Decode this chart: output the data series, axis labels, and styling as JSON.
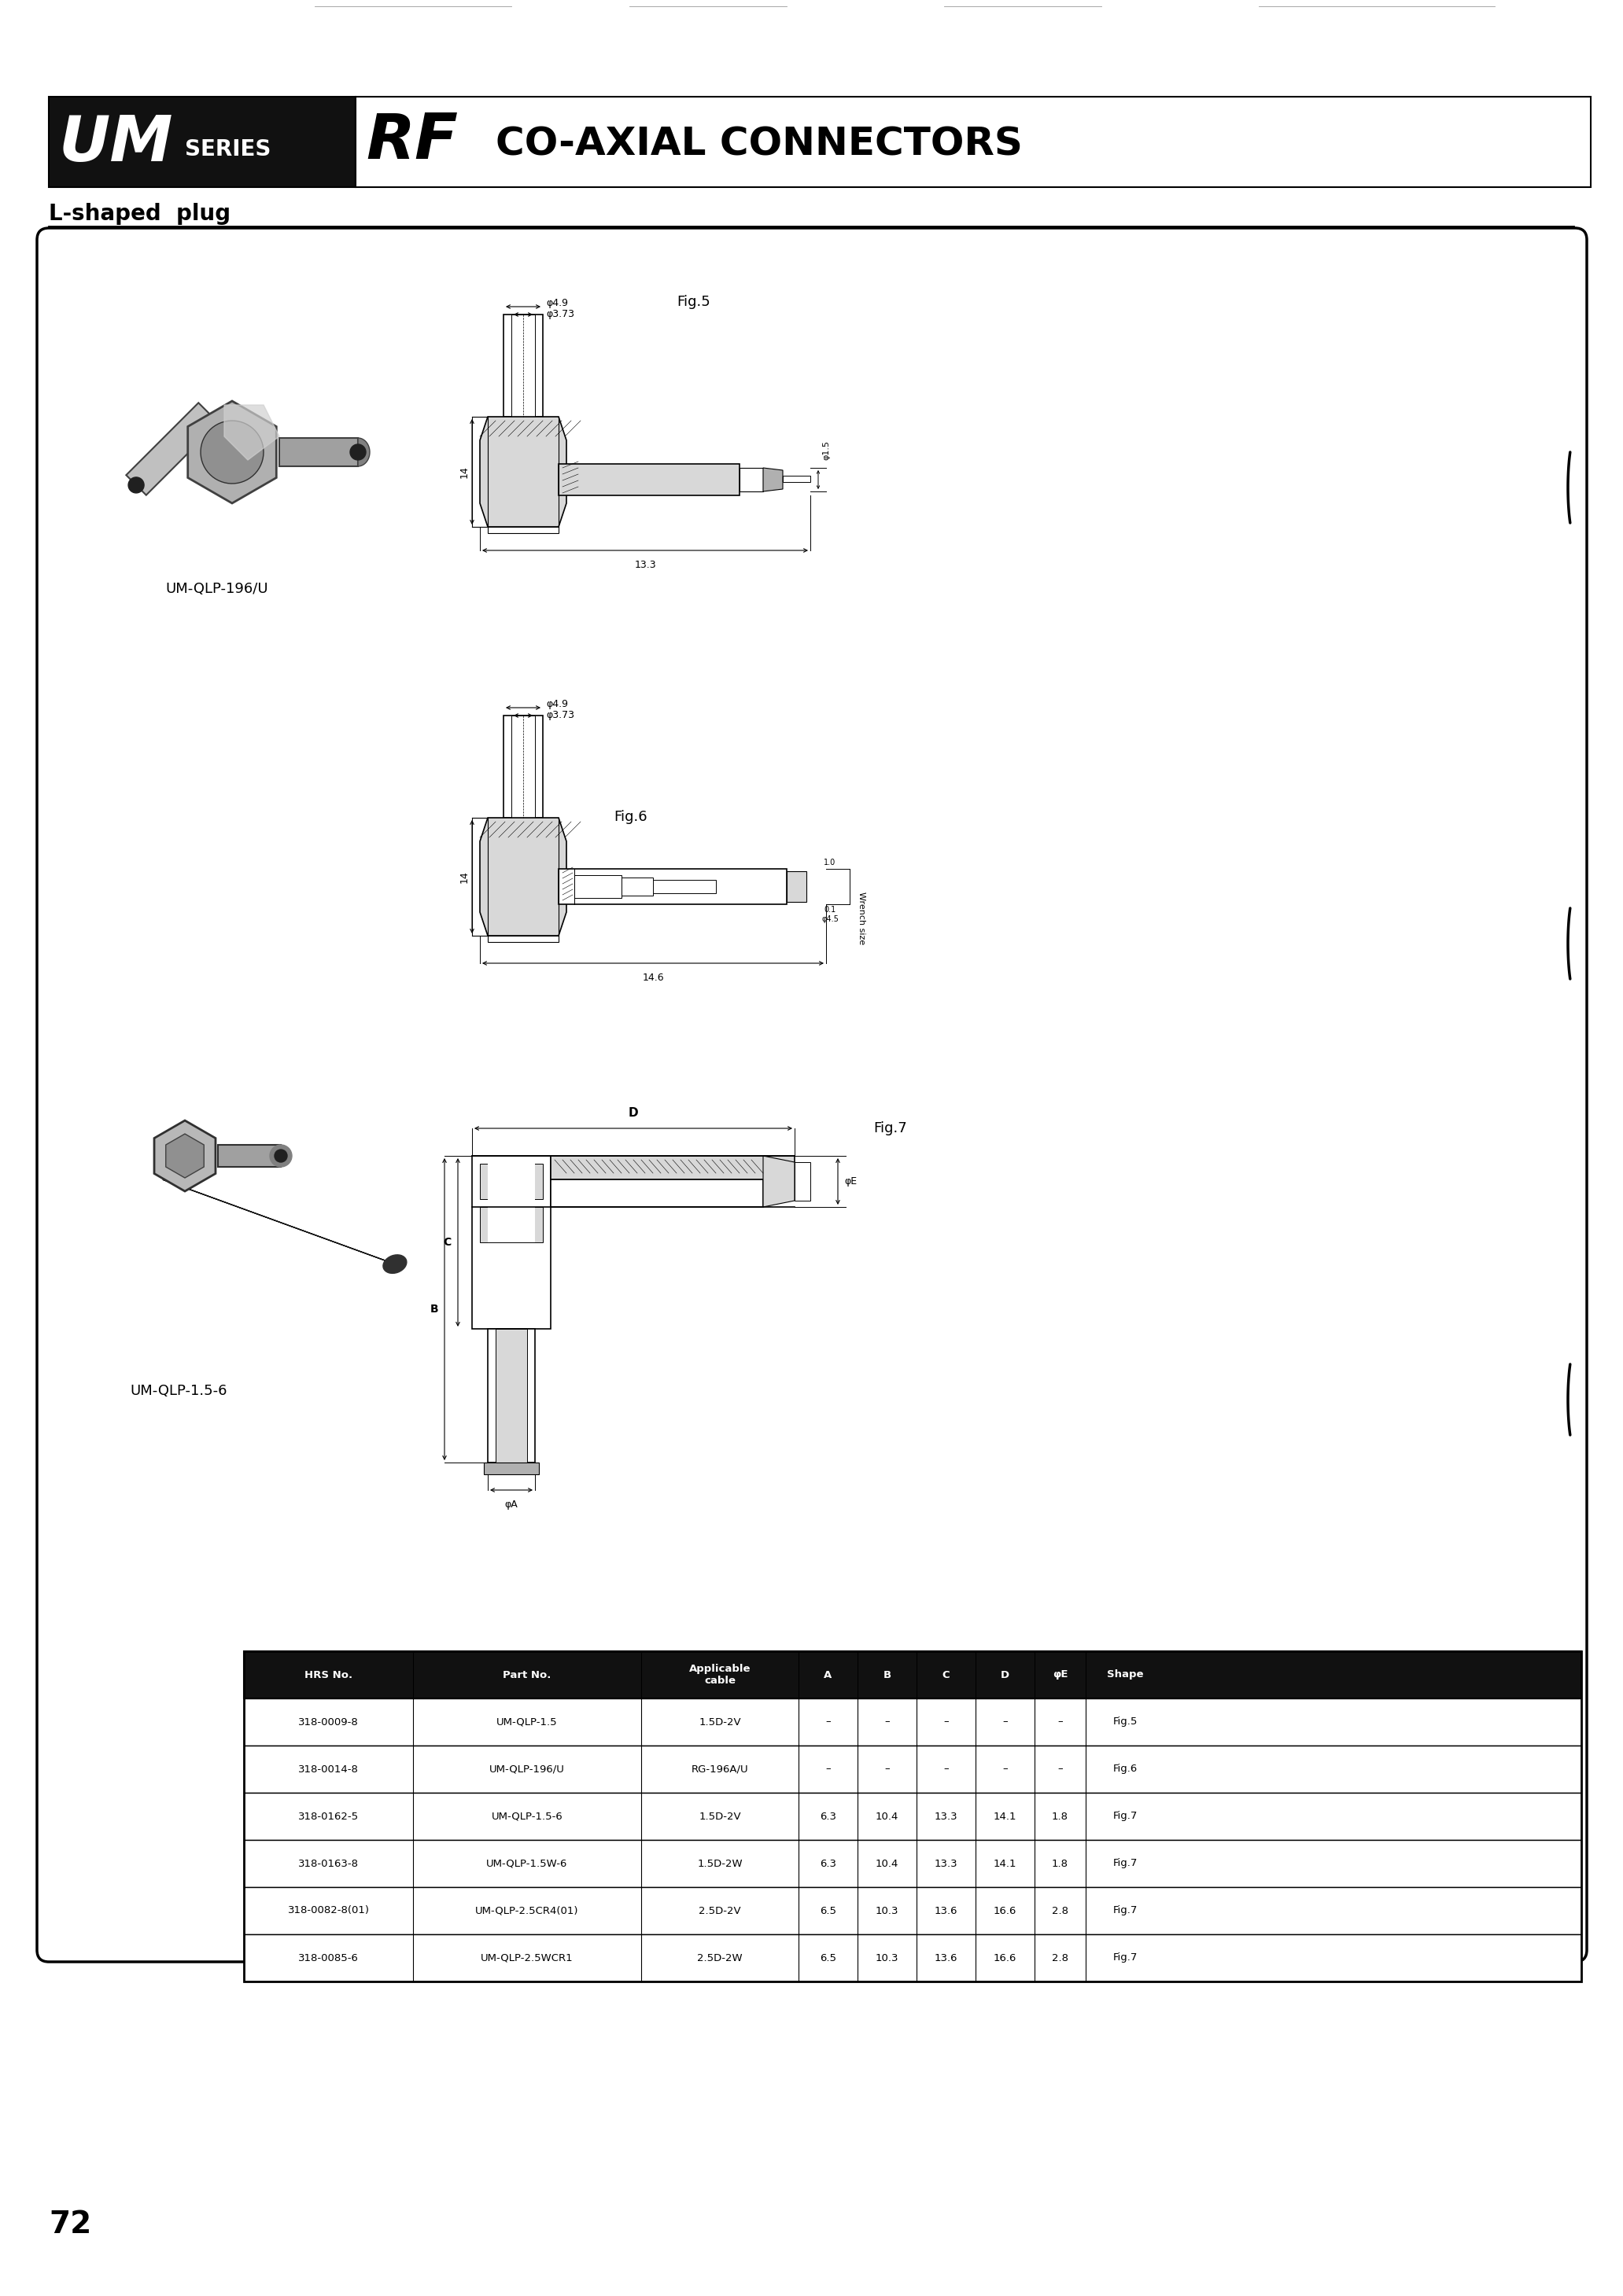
{
  "title_um": "UM",
  "title_series": "SERIES",
  "title_rf": "RF",
  "title_co": "CO-AXIAL CONNECTORS",
  "subtitle": "L-shaped  plug",
  "label1": "UM-QLP-196/U",
  "label2": "UM-QLP-1.5-6",
  "page_number": "72",
  "fig5_label": "Fig.5",
  "fig6_label": "Fig.6",
  "fig7_label": "Fig.7",
  "dim_49": "φ4.9",
  "dim_373": "φ3.73",
  "dim_14": "14",
  "dim_133": "13.3",
  "dim_146": "14.6",
  "dim_D": "D",
  "dim_phiA": "φA",
  "dim_phiE": "φE",
  "dim_A": "A",
  "dim_B": "B",
  "dim_C": "C",
  "wrench_size": "Wrench size",
  "table_headers": [
    "HRS No.",
    "Part No.",
    "Applicable\ncable",
    "A",
    "B",
    "C",
    "D",
    "φE",
    "Shape"
  ],
  "table_rows": [
    [
      "318-0009-8",
      "UM-QLP-1.5",
      "1.5D-2V",
      "–",
      "–",
      "–",
      "–",
      "–",
      "Fig.5"
    ],
    [
      "318-0014-8",
      "UM-QLP-196/U",
      "RG-196A/U",
      "–",
      "–",
      "–",
      "–",
      "–",
      "Fig.6"
    ],
    [
      "318-0162-5",
      "UM-QLP-1.5-6",
      "1.5D-2V",
      "6.3",
      "10.4",
      "13.3",
      "14.1",
      "1.8",
      "Fig.7"
    ],
    [
      "318-0163-8",
      "UM-QLP-1.5W-6",
      "1.5D-2W",
      "6.3",
      "10.4",
      "13.3",
      "14.1",
      "1.8",
      "Fig.7"
    ],
    [
      "318-0082-8(01)",
      "UM-QLP-2.5CR4(01)",
      "2.5D-2V",
      "6.5",
      "10.3",
      "13.6",
      "16.6",
      "2.8",
      "Fig.7"
    ],
    [
      "318-0085-6",
      "UM-QLP-2.5WCR1",
      "2.5D-2W",
      "6.5",
      "10.3",
      "13.6",
      "16.6",
      "2.8",
      "Fig.7"
    ]
  ],
  "bg_color": "#ffffff",
  "black": "#000000",
  "header_bg": "#111111",
  "header_text": "#ffffff",
  "um_bg": "#111111",
  "gray_light": "#d8d8d8",
  "gray_mid": "#b0b0b0",
  "gray_dark": "#606060"
}
